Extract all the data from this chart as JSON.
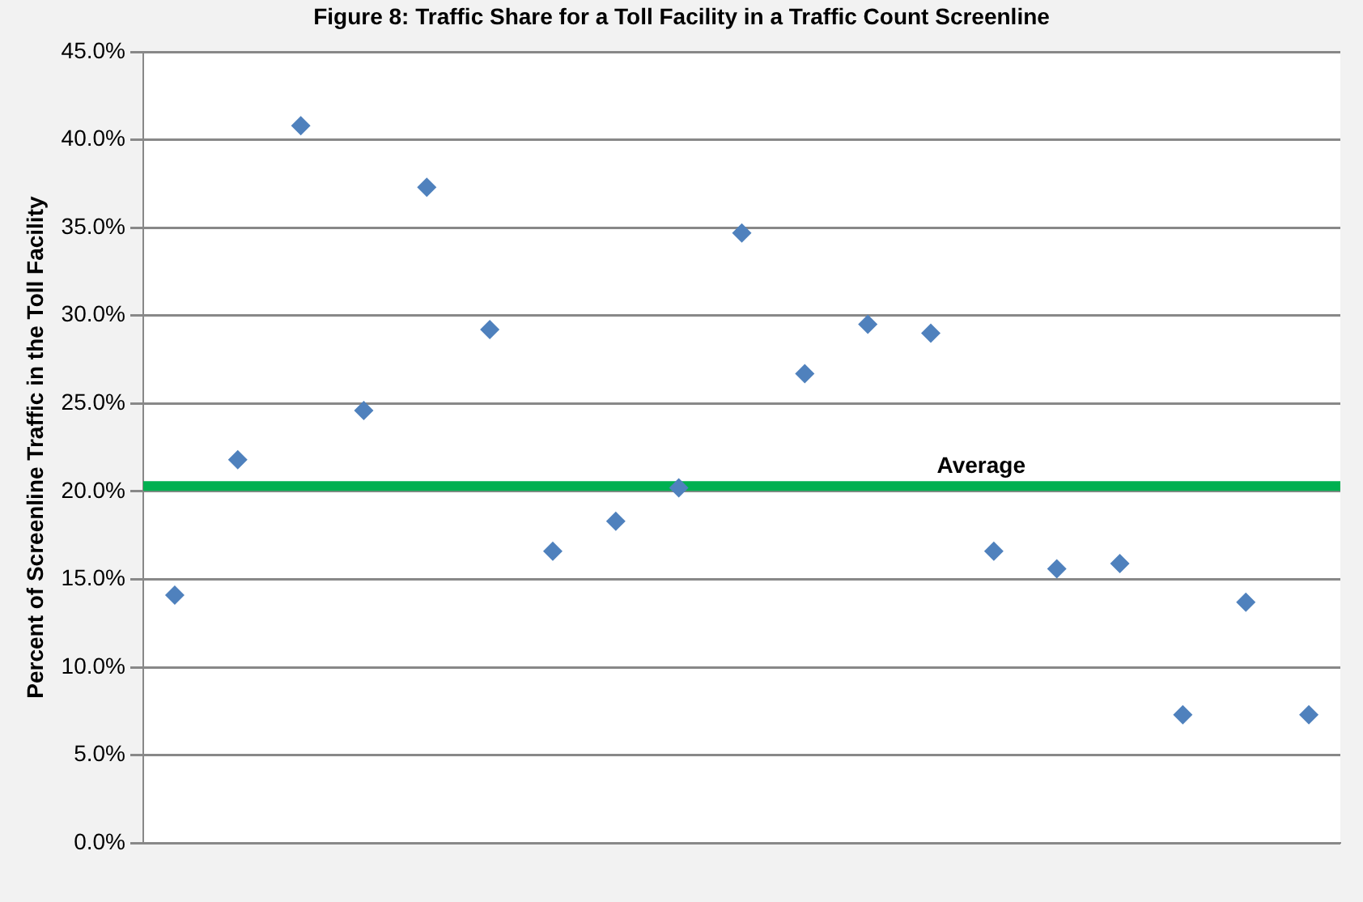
{
  "chart_data": {
    "type": "scatter",
    "title": "Figure 8: Traffic Share for a Toll Facility in a Traffic Count Screenline",
    "ylabel": "Percent of Screenline Traffic in the Toll Facility",
    "categories": [
      null,
      null,
      null,
      null,
      null,
      null,
      null,
      null,
      null,
      null,
      null,
      null,
      null,
      null,
      null,
      null,
      null,
      null,
      null
    ],
    "series": [
      {
        "color": "#4f81bd",
        "values": [
          14.1,
          21.8,
          40.8,
          24.6,
          37.3,
          29.2,
          16.6,
          18.3,
          20.2,
          34.7,
          26.7,
          29.5,
          29.0,
          16.6,
          15.6,
          15.9,
          7.3,
          13.7,
          7.3
        ]
      }
    ],
    "ylim": [
      0,
      45
    ],
    "yticks": [
      {
        "value": 0,
        "label": "0.0%"
      },
      {
        "value": 5,
        "label": "5.0%"
      },
      {
        "value": 10,
        "label": "10.0%"
      },
      {
        "value": 15,
        "label": "15.0%"
      },
      {
        "value": 20,
        "label": "20.0%"
      },
      {
        "value": 25,
        "label": "25.0%"
      },
      {
        "value": 30,
        "label": "30.0%"
      },
      {
        "value": 35,
        "label": "35.0%"
      },
      {
        "value": 40,
        "label": "40.0%"
      },
      {
        "value": 45,
        "label": "45.0%"
      }
    ],
    "ref_lines": [
      {
        "axis": "y",
        "value": 20.3,
        "label": "Average",
        "color": "#00b050"
      }
    ],
    "grid": "y",
    "legend": false,
    "marker": "diamond"
  }
}
